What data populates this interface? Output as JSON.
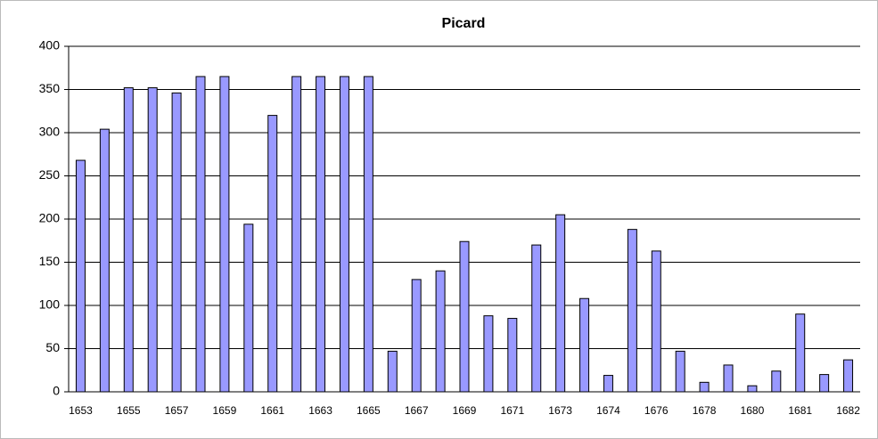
{
  "chart_data": {
    "type": "bar",
    "title": "Picard",
    "categories": [
      "1653",
      null,
      "1655",
      null,
      "1657",
      null,
      "1659",
      null,
      "1661",
      null,
      "1663",
      null,
      "1665",
      null,
      "1667",
      null,
      "1669",
      null,
      "1671",
      null,
      "1673",
      null,
      "1674",
      null,
      "1676",
      null,
      "1678",
      null,
      "1680",
      null,
      "1681",
      null,
      "1682"
    ],
    "values": [
      268,
      304,
      352,
      352,
      346,
      365,
      365,
      194,
      320,
      365,
      365,
      365,
      365,
      47,
      130,
      140,
      174,
      88,
      85,
      170,
      205,
      108,
      19,
      188,
      163,
      47,
      11,
      31,
      7,
      24,
      90,
      20,
      37
    ],
    "color": "#9999ff",
    "ylim": [
      0,
      400
    ],
    "yticks": [
      0,
      50,
      100,
      150,
      200,
      250,
      300,
      350,
      400
    ],
    "grid": true
  }
}
